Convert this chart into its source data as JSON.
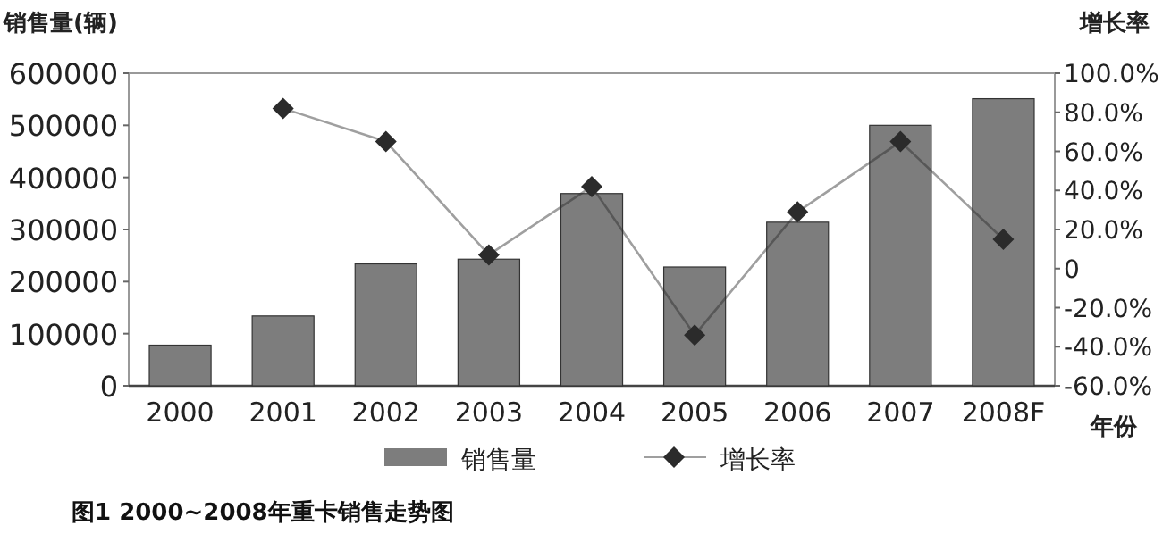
{
  "chart_data": {
    "type": "bar",
    "title": "图1 2000~2008年重卡销售走势图",
    "xlabel": "年份",
    "ylabel": "销售量(辆)",
    "y2label": "增长率",
    "categories": [
      "2000",
      "2001",
      "2002",
      "2003",
      "2004",
      "2005",
      "2006",
      "2007",
      "2008F"
    ],
    "series": [
      {
        "name": "销售量",
        "color": "#7d7d7d",
        "values": [
          78000,
          134000,
          234000,
          243000,
          369000,
          228000,
          314000,
          500000,
          551000
        ]
      },
      {
        "name": "增长率",
        "type": "line",
        "axis": "y2",
        "color": "#2b2b2b",
        "values": [
          null,
          82,
          65,
          7,
          42,
          -34,
          29,
          65,
          15
        ]
      }
    ],
    "ylim": [
      0,
      600000
    ],
    "yticks": [
      0,
      100000,
      200000,
      300000,
      400000,
      500000,
      600000
    ],
    "y2lim": [
      -60,
      100
    ],
    "y2ticks": [
      {
        "value": 100,
        "label": "100.0%"
      },
      {
        "value": 80,
        "label": "80.0%"
      },
      {
        "value": 60,
        "label": "60.0%"
      },
      {
        "value": 40,
        "label": "40.0%"
      },
      {
        "value": 20,
        "label": "20.0%"
      },
      {
        "value": 0,
        "label": "0"
      },
      {
        "value": -20,
        "label": "-20.0%"
      },
      {
        "value": -40,
        "label": "-40.0%"
      },
      {
        "value": -60,
        "label": "-60.0%"
      }
    ],
    "marker": "diamond",
    "legend": "bottom"
  }
}
